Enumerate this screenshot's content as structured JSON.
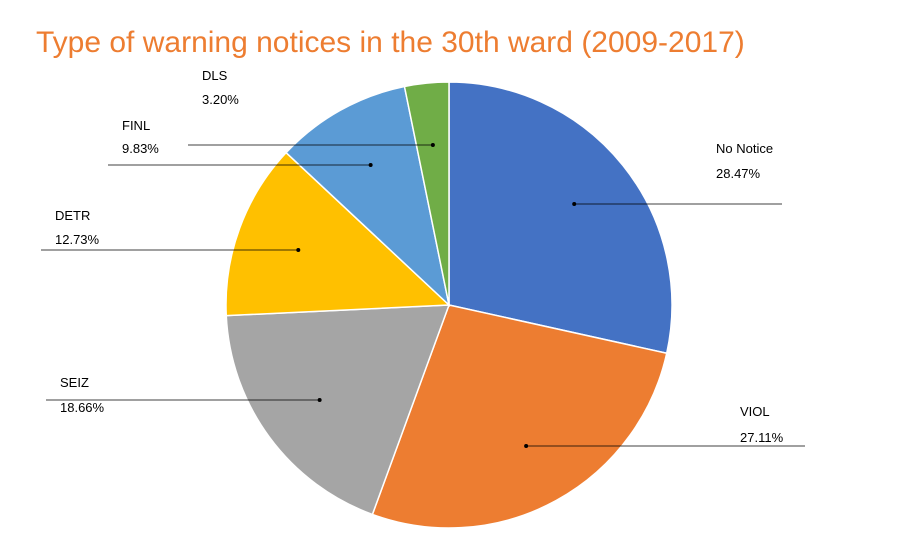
{
  "chart_data": {
    "type": "pie",
    "title": "Type of warning notices in the 30th ward (2009-2017)",
    "title_color": "#ED7D31",
    "slices": [
      {
        "label": "No Notice",
        "value": 28.47,
        "percent_label": "28.47%",
        "color": "#4472C4"
      },
      {
        "label": "VIOL",
        "value": 27.11,
        "percent_label": "27.11%",
        "color": "#ED7D31"
      },
      {
        "label": "SEIZ",
        "value": 18.66,
        "percent_label": "18.66%",
        "color": "#A5A5A5"
      },
      {
        "label": "DETR",
        "value": 12.73,
        "percent_label": "12.73%",
        "color": "#FFC000"
      },
      {
        "label": "FINL",
        "value": 9.83,
        "percent_label": "9.83%",
        "color": "#5B9BD5"
      },
      {
        "label": "DLS",
        "value": 3.2,
        "percent_label": "3.20%",
        "color": "#70AD47"
      }
    ],
    "start": "12 o'clock",
    "direction": "clockwise",
    "legend": "none"
  }
}
